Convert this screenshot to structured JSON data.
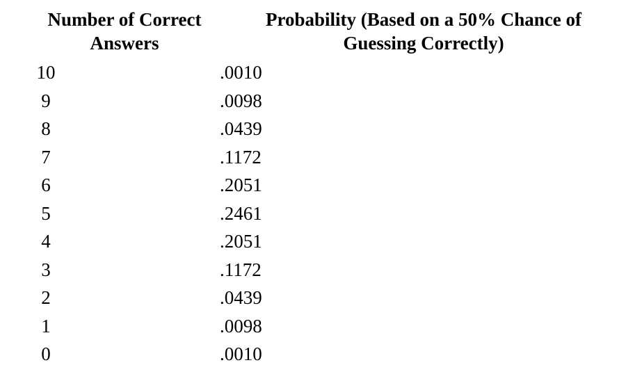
{
  "table": {
    "headers": {
      "count": "Number of Correct Answers",
      "probability": "Probability (Based on a 50% Chance of Guessing Correctly)"
    },
    "rows": [
      {
        "count": "10",
        "probability": ".0010"
      },
      {
        "count": "9",
        "probability": ".0098"
      },
      {
        "count": "8",
        "probability": ".0439"
      },
      {
        "count": "7",
        "probability": ".1172"
      },
      {
        "count": "6",
        "probability": ".2051"
      },
      {
        "count": "5",
        "probability": ".2461"
      },
      {
        "count": "4",
        "probability": ".2051"
      },
      {
        "count": "3",
        "probability": ".1172"
      },
      {
        "count": "2",
        "probability": ".0439"
      },
      {
        "count": "1",
        "probability": ".0098"
      },
      {
        "count": "0",
        "probability": ".0010"
      }
    ]
  }
}
